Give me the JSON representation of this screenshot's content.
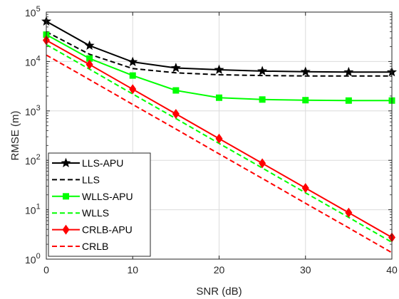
{
  "chart_data": {
    "type": "line",
    "xlabel": "SNR (dB)",
    "ylabel": "RMSE (m)",
    "xlim": [
      0,
      40
    ],
    "ylim": [
      1,
      100000
    ],
    "yscale": "log",
    "grid": true,
    "legend_position": "bottom-left",
    "x_ticks": [
      "0",
      "10",
      "20",
      "30",
      "40"
    ],
    "y_ticks": [
      {
        "base": "10",
        "exp": "0"
      },
      {
        "base": "10",
        "exp": "1"
      },
      {
        "base": "10",
        "exp": "2"
      },
      {
        "base": "10",
        "exp": "3"
      },
      {
        "base": "10",
        "exp": "4"
      },
      {
        "base": "10",
        "exp": "5"
      }
    ],
    "x": [
      0,
      5,
      10,
      15,
      20,
      25,
      30,
      35,
      40
    ],
    "series": [
      {
        "name": "LLS-APU",
        "color": "#000000",
        "dash": "solid",
        "marker": "star",
        "values": [
          65000,
          21000,
          9800,
          7400,
          6800,
          6400,
          6200,
          6100,
          6100
        ]
      },
      {
        "name": "LLS",
        "color": "#000000",
        "dash": "dashed",
        "marker": "none",
        "values": [
          40000,
          14000,
          7200,
          5900,
          5400,
          5200,
          5100,
          5100,
          5100
        ]
      },
      {
        "name": "WLLS-APU",
        "color": "#00ff00",
        "dash": "solid",
        "marker": "square",
        "values": [
          35000,
          11500,
          5200,
          2600,
          1850,
          1700,
          1650,
          1620,
          1620
        ]
      },
      {
        "name": "WLLS",
        "color": "#00ff00",
        "dash": "dashed",
        "marker": "none",
        "values": [
          22000,
          7000,
          2200,
          700,
          220,
          70,
          22,
          7,
          2.2
        ]
      },
      {
        "name": "CRLB-APU",
        "color": "#ff0000",
        "dash": "solid",
        "marker": "diamond",
        "values": [
          27000,
          8700,
          2750,
          870,
          275,
          87,
          27.5,
          8.7,
          2.75
        ]
      },
      {
        "name": "CRLB",
        "color": "#ff0000",
        "dash": "dashed",
        "marker": "none",
        "values": [
          13500,
          4300,
          1350,
          430,
          135,
          43,
          13.5,
          4.3,
          1.35
        ]
      }
    ]
  }
}
